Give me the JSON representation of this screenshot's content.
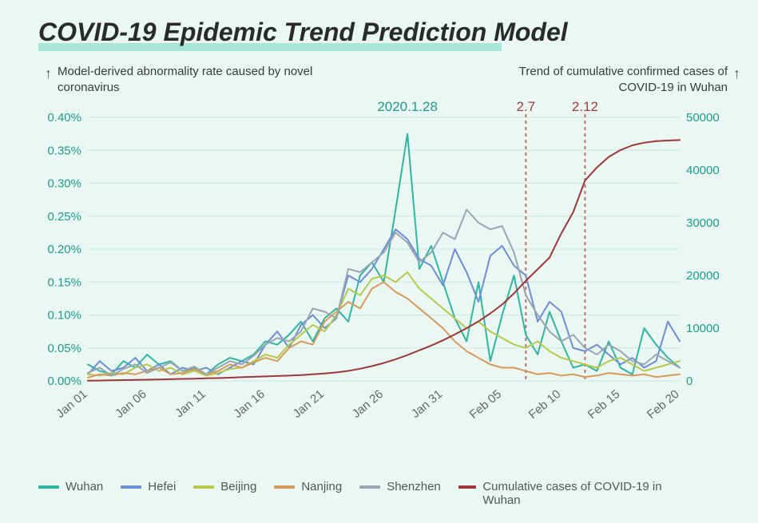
{
  "title": "COVID-19 Epidemic Trend Prediction Model",
  "subtitle_left": "Model-derived abnormality rate caused by novel coronavirus",
  "subtitle_right": "Trend of cumulative confirmed cases of COVID-19 in Wuhan",
  "chart": {
    "type": "line",
    "background_color": "#eaf7f3",
    "plot_bg": "#eaf7f3",
    "grid_color": "#c8e8e0",
    "axis_label_color": "#1b9f88",
    "x_labels": [
      "Jan 01",
      "Jan 06",
      "Jan 11",
      "Jan 16",
      "Jan 21",
      "Jan 26",
      "Jan 31",
      "Feb 05",
      "Feb 10",
      "Feb 15",
      "Feb 20"
    ],
    "y_left": {
      "min": 0,
      "max": 0.4,
      "tick_step": 0.05,
      "ticks": [
        "0.00%",
        "0.05%",
        "0.10%",
        "0.15%",
        "0.20%",
        "0.25%",
        "0.30%",
        "0.35%",
        "0.40%"
      ],
      "fontsize": 15
    },
    "y_right": {
      "min": 0,
      "max": 50000,
      "tick_step": 10000,
      "ticks": [
        "0",
        "10000",
        "20000",
        "30000",
        "40000",
        "50000"
      ],
      "fontsize": 15
    },
    "annotations_top": [
      {
        "text": "2020.1.28",
        "x_index": 27,
        "color": "#1b9f88"
      },
      {
        "text": "2.7",
        "x_index": 37,
        "color": "#a33a3a",
        "dashed_line": true,
        "line_color": "#c46a6a"
      },
      {
        "text": "2.12",
        "x_index": 42,
        "color": "#a33a3a",
        "dashed_line": true,
        "line_color": "#c46a6a"
      }
    ],
    "line_width": 2,
    "series": [
      {
        "name": "Wuhan",
        "color": "#2fb6a0",
        "axis": "left",
        "values": [
          0.025,
          0.015,
          0.01,
          0.03,
          0.02,
          0.04,
          0.025,
          0.03,
          0.015,
          0.02,
          0.01,
          0.025,
          0.035,
          0.03,
          0.04,
          0.06,
          0.055,
          0.07,
          0.09,
          0.06,
          0.095,
          0.11,
          0.09,
          0.16,
          0.18,
          0.15,
          0.26,
          0.375,
          0.17,
          0.205,
          0.15,
          0.095,
          0.06,
          0.15,
          0.03,
          0.1,
          0.16,
          0.07,
          0.04,
          0.105,
          0.06,
          0.02,
          0.025,
          0.015,
          0.06,
          0.02,
          0.01,
          0.08,
          0.055,
          0.035,
          0.02
        ]
      },
      {
        "name": "Hefei",
        "color": "#6a8fd8",
        "axis": "left",
        "values": [
          0.01,
          0.03,
          0.015,
          0.02,
          0.035,
          0.015,
          0.025,
          0.01,
          0.02,
          0.015,
          0.02,
          0.01,
          0.02,
          0.03,
          0.025,
          0.055,
          0.075,
          0.05,
          0.085,
          0.1,
          0.08,
          0.095,
          0.16,
          0.15,
          0.17,
          0.2,
          0.23,
          0.215,
          0.185,
          0.175,
          0.145,
          0.2,
          0.165,
          0.12,
          0.19,
          0.205,
          0.175,
          0.16,
          0.09,
          0.12,
          0.105,
          0.05,
          0.045,
          0.055,
          0.04,
          0.025,
          0.035,
          0.02,
          0.03,
          0.09,
          0.06
        ]
      },
      {
        "name": "Beijing",
        "color": "#b8c94a",
        "axis": "left",
        "values": [
          0.01,
          0.008,
          0.012,
          0.01,
          0.02,
          0.025,
          0.015,
          0.02,
          0.01,
          0.015,
          0.008,
          0.012,
          0.018,
          0.02,
          0.03,
          0.04,
          0.035,
          0.055,
          0.07,
          0.085,
          0.075,
          0.1,
          0.14,
          0.13,
          0.155,
          0.16,
          0.15,
          0.165,
          0.14,
          0.125,
          0.11,
          0.095,
          0.08,
          0.09,
          0.075,
          0.065,
          0.055,
          0.05,
          0.06,
          0.045,
          0.035,
          0.03,
          0.025,
          0.02,
          0.03,
          0.035,
          0.025,
          0.015,
          0.02,
          0.025,
          0.03
        ]
      },
      {
        "name": "Nanjing",
        "color": "#d89a5a",
        "axis": "left",
        "values": [
          0.005,
          0.01,
          0.008,
          0.012,
          0.01,
          0.015,
          0.02,
          0.01,
          0.012,
          0.018,
          0.01,
          0.015,
          0.025,
          0.02,
          0.028,
          0.035,
          0.03,
          0.05,
          0.06,
          0.055,
          0.09,
          0.105,
          0.12,
          0.11,
          0.14,
          0.15,
          0.135,
          0.125,
          0.11,
          0.095,
          0.08,
          0.06,
          0.045,
          0.035,
          0.025,
          0.02,
          0.02,
          0.015,
          0.01,
          0.012,
          0.008,
          0.01,
          0.006,
          0.008,
          0.012,
          0.01,
          0.008,
          0.01,
          0.006,
          0.008,
          0.01
        ]
      },
      {
        "name": "Shenzhen",
        "color": "#9aa5b1",
        "axis": "left",
        "values": [
          0.012,
          0.02,
          0.008,
          0.018,
          0.025,
          0.012,
          0.02,
          0.028,
          0.015,
          0.022,
          0.01,
          0.02,
          0.03,
          0.025,
          0.038,
          0.055,
          0.065,
          0.06,
          0.075,
          0.11,
          0.105,
          0.095,
          0.17,
          0.165,
          0.18,
          0.195,
          0.225,
          0.21,
          0.18,
          0.195,
          0.225,
          0.215,
          0.26,
          0.24,
          0.23,
          0.235,
          0.195,
          0.13,
          0.1,
          0.075,
          0.06,
          0.07,
          0.05,
          0.04,
          0.055,
          0.045,
          0.03,
          0.025,
          0.04,
          0.03,
          0.02
        ]
      },
      {
        "name": "Cumulative cases of COVID-19 in Wuhan",
        "color": "#9e3838",
        "axis": "right",
        "values": [
          45,
          62,
          100,
          150,
          180,
          220,
          270,
          320,
          380,
          430,
          480,
          530,
          600,
          700,
          780,
          850,
          920,
          1000,
          1100,
          1250,
          1400,
          1600,
          1900,
          2300,
          2800,
          3400,
          4100,
          4900,
          5800,
          6700,
          7700,
          8800,
          10000,
          11300,
          12800,
          14500,
          16600,
          19000,
          21200,
          23400,
          28000,
          32000,
          38000,
          40500,
          42500,
          43800,
          44700,
          45200,
          45500,
          45600,
          45700
        ]
      }
    ]
  },
  "legend": [
    {
      "label": "Wuhan",
      "color": "#2fb6a0"
    },
    {
      "label": "Hefei",
      "color": "#6a8fd8"
    },
    {
      "label": "Beijing",
      "color": "#b8c94a"
    },
    {
      "label": "Nanjing",
      "color": "#d89a5a"
    },
    {
      "label": "Shenzhen",
      "color": "#9aa5b1"
    },
    {
      "label": "Cumulative cases of COVID-19 in Wuhan",
      "color": "#9e3838"
    }
  ]
}
